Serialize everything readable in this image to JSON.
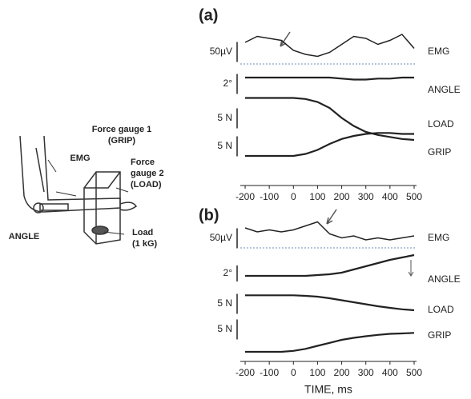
{
  "diagram": {
    "labels": [
      "Force gauge 1",
      "(GRIP)",
      "EMG",
      "Force",
      "gauge 2",
      "(LOAD)",
      "ANGLE",
      "Load",
      "(1 kG)"
    ]
  },
  "chart_data": [
    {
      "type": "line",
      "title": "(a)",
      "x": [
        -200,
        -150,
        -100,
        -50,
        0,
        50,
        100,
        150,
        200,
        250,
        300,
        350,
        400,
        450,
        500
      ],
      "xlim": [
        -220,
        510
      ],
      "xticks": [
        -200,
        -100,
        0,
        100,
        200,
        300,
        400,
        500
      ],
      "series": [
        {
          "name": "EMG",
          "scale": "50µV",
          "color": "#222",
          "values": [
            1.0,
            1.3,
            1.2,
            1.1,
            0.6,
            0.4,
            0.3,
            0.5,
            0.9,
            1.3,
            1.2,
            0.9,
            1.1,
            1.4,
            0.7
          ]
        },
        {
          "name": "ANGLE",
          "scale": "2°",
          "color": "#222",
          "values": [
            0,
            0,
            0,
            0,
            0,
            0,
            0,
            0,
            -0.05,
            -0.1,
            -0.1,
            -0.05,
            -0.05,
            0,
            0
          ]
        },
        {
          "name": "LOAD",
          "scale": "5 N",
          "color": "#222",
          "values": [
            2.1,
            2.1,
            2.1,
            2.1,
            2.1,
            2.05,
            1.9,
            1.6,
            1.1,
            0.7,
            0.4,
            0.25,
            0.15,
            0.05,
            0
          ]
        },
        {
          "name": "GRIP",
          "scale": "5 N",
          "color": "#222",
          "values": [
            0,
            0,
            0,
            0,
            0,
            0.1,
            0.3,
            0.6,
            0.85,
            1.0,
            1.1,
            1.15,
            1.15,
            1.1,
            1.1
          ]
        }
      ]
    },
    {
      "type": "line",
      "title": "(b)",
      "xlabel": "TIME, ms",
      "x": [
        -200,
        -150,
        -100,
        -50,
        0,
        50,
        100,
        150,
        200,
        250,
        300,
        350,
        400,
        450,
        500
      ],
      "xlim": [
        -220,
        510
      ],
      "xticks": [
        -200,
        -100,
        0,
        100,
        200,
        300,
        400,
        500
      ],
      "series": [
        {
          "name": "EMG",
          "scale": "50µV",
          "color": "#222",
          "values": [
            0.8,
            0.6,
            0.7,
            0.6,
            0.7,
            0.9,
            1.1,
            0.5,
            0.3,
            0.4,
            0.2,
            0.3,
            0.2,
            0.3,
            0.4
          ]
        },
        {
          "name": "ANGLE",
          "scale": "2°",
          "color": "#222",
          "values": [
            0,
            0,
            0,
            0,
            0,
            0,
            0.05,
            0.1,
            0.2,
            0.4,
            0.6,
            0.8,
            1.0,
            1.15,
            1.3
          ]
        },
        {
          "name": "LOAD",
          "scale": "5 N",
          "color": "#222",
          "values": [
            0.75,
            0.75,
            0.75,
            0.75,
            0.75,
            0.72,
            0.68,
            0.6,
            0.5,
            0.4,
            0.3,
            0.2,
            0.12,
            0.05,
            0
          ]
        },
        {
          "name": "GRIP",
          "scale": "5 N",
          "color": "#222",
          "values": [
            0,
            0,
            0,
            0,
            0.05,
            0.15,
            0.3,
            0.45,
            0.6,
            0.7,
            0.78,
            0.85,
            0.9,
            0.92,
            0.95
          ]
        }
      ]
    }
  ]
}
